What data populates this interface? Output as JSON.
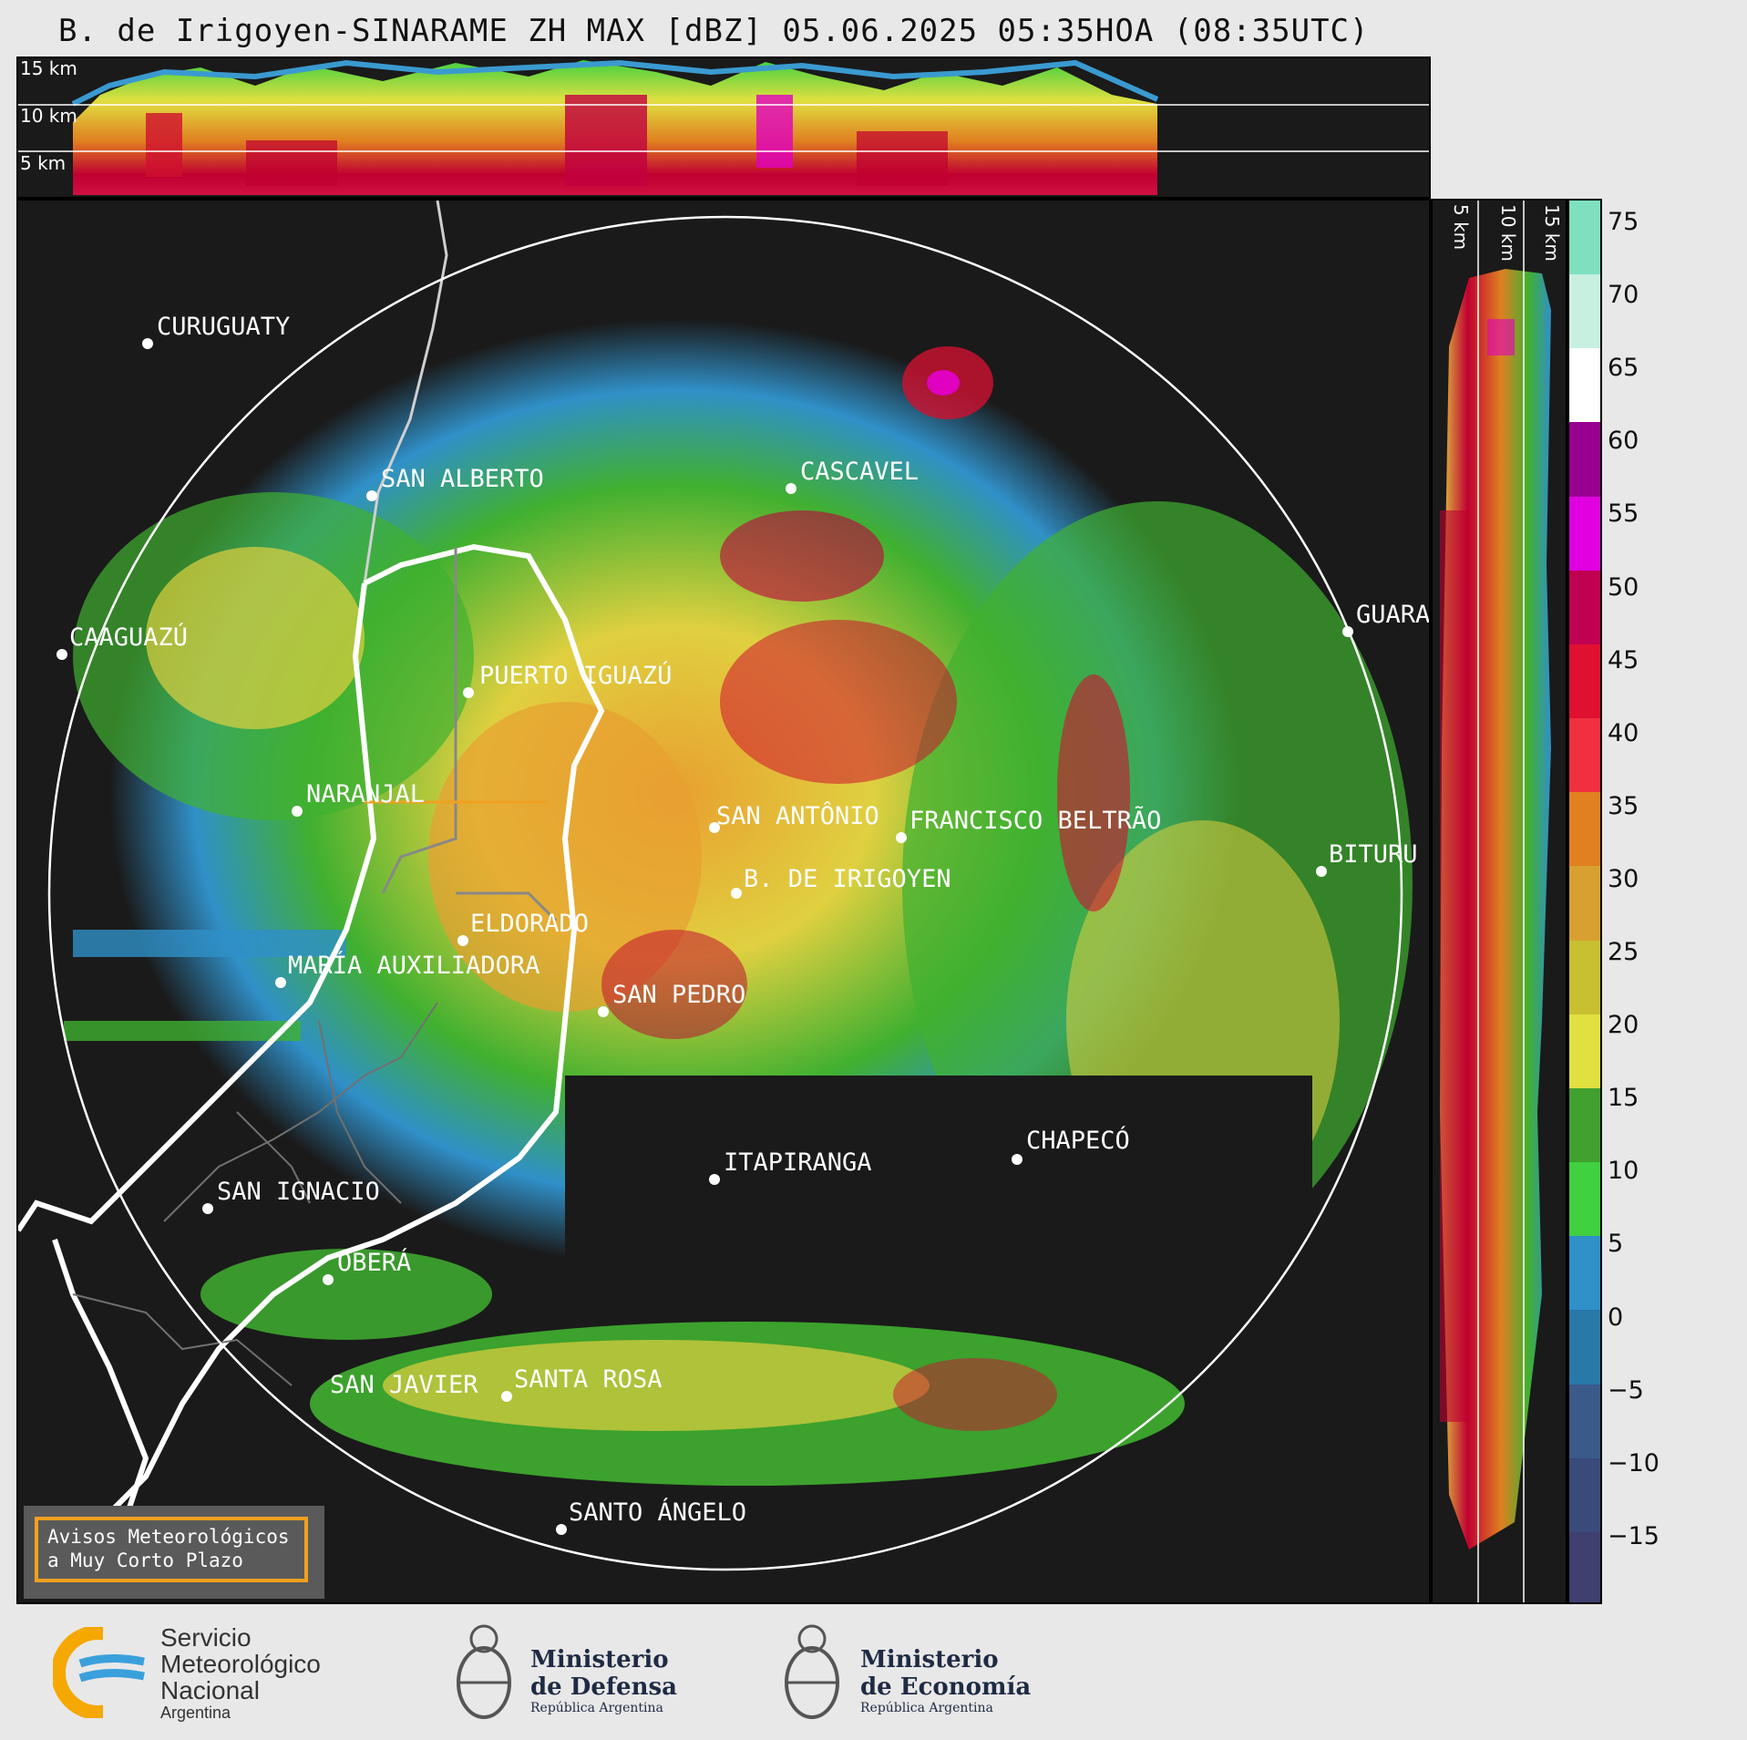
{
  "title": "B. de Irigoyen-SINARAME ZH MAX [dBZ] 05.06.2025 05:35HOA (08:35UTC)",
  "top_profile": {
    "height_labels": [
      "15 km",
      "10 km",
      "5 km"
    ]
  },
  "side_profile": {
    "height_labels": [
      "5 km",
      "10 km",
      "15 km"
    ]
  },
  "colorbar": {
    "ticks": [
      "75",
      "70",
      "65",
      "60",
      "55",
      "50",
      "45",
      "40",
      "35",
      "30",
      "25",
      "20",
      "15",
      "10",
      "5",
      "0",
      "−5",
      "−10",
      "−15"
    ],
    "colors": [
      "#7fe0c0",
      "#c8f0e0",
      "#ffffff",
      "#9a0090",
      "#e000e0",
      "#c00050",
      "#e01030",
      "#f03040",
      "#e08020",
      "#d8a030",
      "#c8c030",
      "#e0e040",
      "#40a030",
      "#40d040",
      "#3090c8",
      "#2878a8",
      "#3a5a8a",
      "#3a4a7a",
      "#404070"
    ]
  },
  "cities": [
    {
      "name": "CURUGUATY"
    },
    {
      "name": "SAN ALBERTO"
    },
    {
      "name": "CASCAVEL"
    },
    {
      "name": "CAAGUAZÚ"
    },
    {
      "name": "GUARA"
    },
    {
      "name": "PUERTO IGUAZÚ"
    },
    {
      "name": "NARANJAL"
    },
    {
      "name": "SAN ANTÔNIO"
    },
    {
      "name": "FRANCISCO BELTRÃO"
    },
    {
      "name": "BITURU"
    },
    {
      "name": "B. DE IRIGOYEN"
    },
    {
      "name": "ELDORADO"
    },
    {
      "name": "MARÍA AUXILIADORA"
    },
    {
      "name": "SAN PEDRO"
    },
    {
      "name": "CHAPECÓ"
    },
    {
      "name": "ITAPIRANGA"
    },
    {
      "name": "SAN IGNACIO"
    },
    {
      "name": "OBERÁ"
    },
    {
      "name": "SAN JAVIER"
    },
    {
      "name": "SANTA ROSA"
    },
    {
      "name": "SANTO ÁNGELO"
    }
  ],
  "notice": {
    "line1": "Avisos Meteorológicos",
    "line2": "a Muy Corto Plazo"
  },
  "logos": {
    "smn_line1": "Servicio",
    "smn_line2": "Meteorológico",
    "smn_line3": "Nacional",
    "smn_line4": "Argentina",
    "def_line1": "Ministerio",
    "def_line2": "de Defensa",
    "def_line3": "República Argentina",
    "eco_line1": "Ministerio",
    "eco_line2": "de Economía",
    "eco_line3": "República Argentina"
  }
}
